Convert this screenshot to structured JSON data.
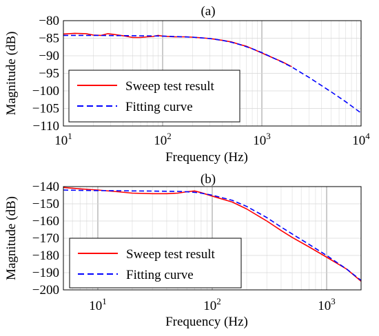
{
  "chart_data": [
    {
      "type": "line",
      "title": "(a)",
      "xlabel": "Frequency  (Hz)",
      "ylabel": "Magnitude (dB)",
      "xscale": "log",
      "xlim": [
        10,
        10000
      ],
      "ylim": [
        -110,
        -80
      ],
      "grid": true,
      "legend_position": "bottom-left",
      "x_tick_labels": [
        {
          "value": 10,
          "base": "10",
          "exp": "1"
        },
        {
          "value": 100,
          "base": "10",
          "exp": "2"
        },
        {
          "value": 1000,
          "base": "10",
          "exp": "3"
        },
        {
          "value": 10000,
          "base": "10",
          "exp": "4"
        }
      ],
      "y_ticks": [
        -80,
        -85,
        -90,
        -95,
        -100,
        -105,
        -110
      ],
      "y_tick_labels": [
        "−80",
        "−85",
        "−90",
        "−95",
        "−100",
        "−105",
        "−110"
      ],
      "series": [
        {
          "name": "Sweep test result",
          "color": "#ff0000",
          "style": "solid",
          "x": [
            10,
            13,
            17,
            20,
            24,
            28,
            32,
            40,
            50,
            60,
            70,
            80,
            90,
            100,
            130,
            170,
            200,
            250,
            300,
            400,
            500,
            600,
            700,
            800,
            1000,
            1300,
            1600,
            2000
          ],
          "y": [
            -83.8,
            -83.6,
            -83.7,
            -84.1,
            -84.2,
            -83.7,
            -83.9,
            -84.3,
            -84.8,
            -84.8,
            -84.6,
            -84.5,
            -84.2,
            -84.4,
            -84.6,
            -84.6,
            -84.7,
            -84.9,
            -85.1,
            -85.6,
            -86.1,
            -86.8,
            -87.3,
            -88.0,
            -89.2,
            -90.6,
            -91.7,
            -93.1
          ]
        },
        {
          "name": "Fitting curve",
          "color": "#0000ff",
          "style": "dashed",
          "x": [
            10,
            20,
            50,
            100,
            200,
            300,
            400,
            500,
            600,
            800,
            1000,
            1300,
            1600,
            2000,
            3000,
            5000,
            7000,
            10000
          ],
          "y": [
            -84.2,
            -84.2,
            -84.3,
            -84.4,
            -84.7,
            -85.1,
            -85.6,
            -86.2,
            -86.8,
            -88.0,
            -89.1,
            -90.6,
            -91.8,
            -93.2,
            -96.2,
            -100.3,
            -103.1,
            -106.3
          ]
        }
      ]
    },
    {
      "type": "line",
      "title": "(b)",
      "xlabel": "Frequency  (Hz)",
      "ylabel": "Magnitude (dB)",
      "xscale": "log",
      "xlim": [
        5,
        2000
      ],
      "ylim": [
        -200,
        -140
      ],
      "grid": true,
      "legend_position": "bottom-left",
      "x_tick_labels": [
        {
          "value": 10,
          "base": "10",
          "exp": "1"
        },
        {
          "value": 100,
          "base": "10",
          "exp": "2"
        },
        {
          "value": 1000,
          "base": "10",
          "exp": "3"
        }
      ],
      "y_ticks": [
        -140,
        -150,
        -160,
        -170,
        -180,
        -190,
        -200
      ],
      "y_tick_labels": [
        "−140",
        "−150",
        "−160",
        "−170",
        "−180",
        "−190",
        "−200"
      ],
      "series": [
        {
          "name": "Sweep test result",
          "color": "#ff0000",
          "style": "solid",
          "x": [
            5,
            7,
            10,
            15,
            20,
            30,
            40,
            50,
            60,
            70,
            80,
            100,
            150,
            200,
            300,
            400,
            500,
            700,
            1000,
            1500,
            2000
          ],
          "y": [
            -140.5,
            -141.3,
            -142.0,
            -143.0,
            -143.8,
            -144.1,
            -144.1,
            -143.8,
            -143.0,
            -142.5,
            -143.5,
            -145.5,
            -149.0,
            -153.0,
            -160.0,
            -165.5,
            -169.5,
            -175.0,
            -181.0,
            -188.0,
            -195.0
          ]
        },
        {
          "name": "Fitting curve",
          "color": "#0000ff",
          "style": "dashed",
          "x": [
            5,
            7,
            10,
            15,
            20,
            30,
            40,
            50,
            60,
            70,
            80,
            100,
            150,
            200,
            300,
            400,
            500,
            700,
            1000,
            1500,
            2000
          ],
          "y": [
            -142.0,
            -142.2,
            -142.3,
            -142.4,
            -142.5,
            -142.6,
            -142.7,
            -142.8,
            -143.0,
            -143.3,
            -143.8,
            -145.0,
            -148.0,
            -151.5,
            -158.0,
            -163.5,
            -167.5,
            -173.5,
            -180.0,
            -188.0,
            -194.5
          ]
        }
      ]
    }
  ]
}
